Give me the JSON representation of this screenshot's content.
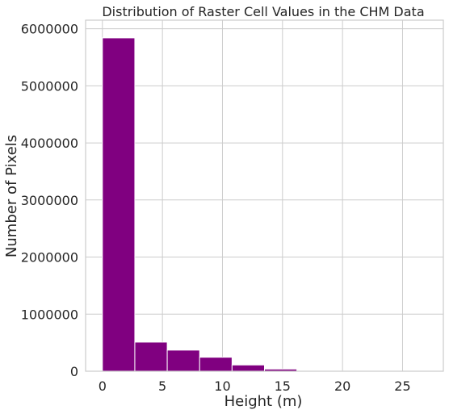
{
  "chart_data": {
    "type": "bar",
    "title": "Distribution of Raster Cell Values in the CHM Data",
    "xlabel": "Height (m)",
    "ylabel": "Number of Pixels",
    "xlim": [
      -1.4,
      28.4
    ],
    "ylim": [
      0,
      6150000
    ],
    "x_ticks": [
      0,
      5,
      10,
      15,
      20,
      25
    ],
    "y_ticks": [
      0,
      1000000,
      2000000,
      3000000,
      4000000,
      5000000,
      6000000
    ],
    "grid": true,
    "color": "#800080",
    "bins": [
      {
        "start": 0.0,
        "end": 2.7,
        "count": 5840000
      },
      {
        "start": 2.7,
        "end": 5.4,
        "count": 510000
      },
      {
        "start": 5.4,
        "end": 8.1,
        "count": 370000
      },
      {
        "start": 8.1,
        "end": 10.8,
        "count": 245000
      },
      {
        "start": 10.8,
        "end": 13.5,
        "count": 110000
      },
      {
        "start": 13.5,
        "end": 16.2,
        "count": 38000
      },
      {
        "start": 16.2,
        "end": 18.9,
        "count": 6000
      },
      {
        "start": 18.9,
        "end": 21.6,
        "count": 1500
      },
      {
        "start": 21.6,
        "end": 24.3,
        "count": 500
      },
      {
        "start": 24.3,
        "end": 27.0,
        "count": 200
      }
    ]
  }
}
